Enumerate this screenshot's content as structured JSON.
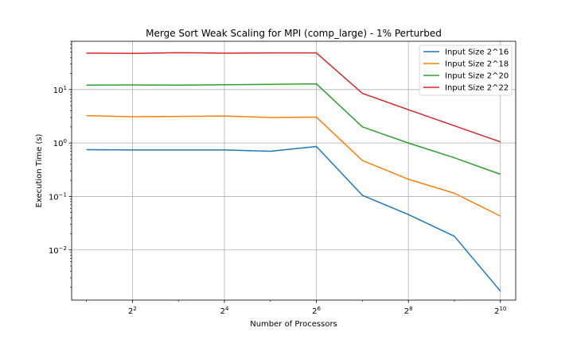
{
  "chart_data": {
    "type": "line",
    "title": "Merge Sort Weak Scaling for MPI (comp_large) - 1% Perturbed",
    "xlabel": "Number of Processors",
    "ylabel": "Execution Time (s)",
    "x_scale": "log2",
    "y_scale": "log10",
    "xlim": [
      1.6,
      1290
    ],
    "ylim": [
      0.00115,
      80
    ],
    "x": [
      2,
      4,
      8,
      16,
      32,
      64,
      128,
      256,
      512,
      1024
    ],
    "x_ticks": [
      {
        "value": 4,
        "base": "2",
        "exp": "2"
      },
      {
        "value": 16,
        "base": "2",
        "exp": "4"
      },
      {
        "value": 64,
        "base": "2",
        "exp": "6"
      },
      {
        "value": 256,
        "base": "2",
        "exp": "8"
      },
      {
        "value": 1024,
        "base": "2",
        "exp": "10"
      }
    ],
    "y_ticks": [
      {
        "value": 0.01,
        "base": "10",
        "exp": "−2"
      },
      {
        "value": 0.1,
        "base": "10",
        "exp": "−1"
      },
      {
        "value": 1,
        "base": "10",
        "exp": "0"
      },
      {
        "value": 10,
        "base": "10",
        "exp": "1"
      }
    ],
    "grid": true,
    "legend_position": "top-right",
    "series": [
      {
        "name": "Input Size 2^16",
        "color": "#1f77b4",
        "values": [
          0.75,
          0.74,
          0.74,
          0.74,
          0.7,
          0.86,
          0.105,
          0.046,
          0.018,
          0.0017
        ]
      },
      {
        "name": "Input Size 2^18",
        "color": "#ff7f0e",
        "values": [
          3.25,
          3.1,
          3.15,
          3.2,
          3.0,
          3.05,
          0.47,
          0.21,
          0.115,
          0.043
        ]
      },
      {
        "name": "Input Size 2^20",
        "color": "#2ca02c",
        "values": [
          12.1,
          12.2,
          12.1,
          12.3,
          12.5,
          12.8,
          2.0,
          1.0,
          0.53,
          0.26
        ]
      },
      {
        "name": "Input Size 2^22",
        "color": "#d62728",
        "values": [
          48.0,
          47.5,
          49.0,
          48.0,
          48.5,
          48.5,
          8.5,
          4.2,
          2.1,
          1.05
        ]
      }
    ]
  }
}
